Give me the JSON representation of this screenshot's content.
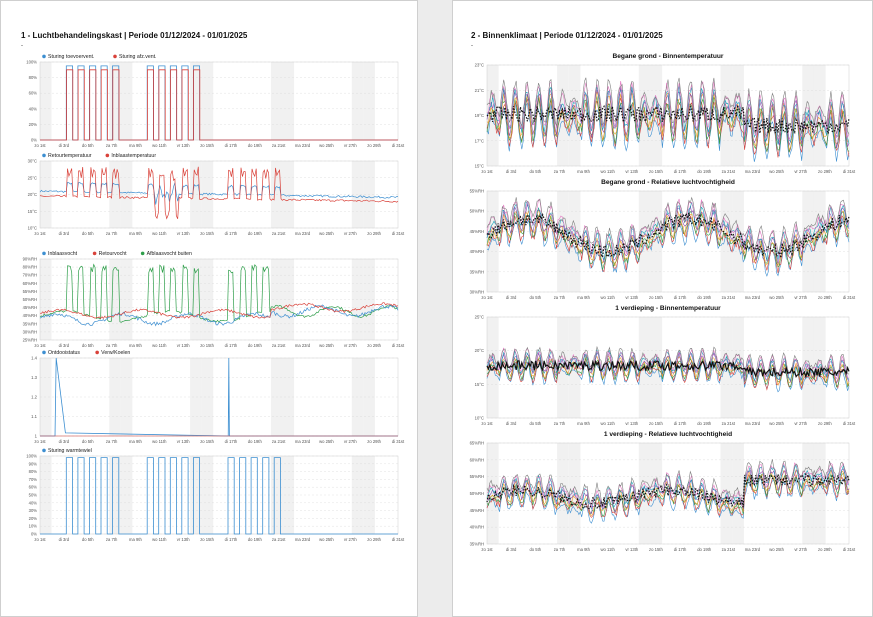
{
  "page1": {
    "title": "1 - Luchtbehandelingskast | Periode 01/12/2024 - 01/01/2025",
    "dash": "-"
  },
  "page2": {
    "title": "2 - Binnenklimaat | Periode 01/12/2024 - 01/01/2025",
    "dash": "-"
  },
  "colors": {
    "blue": "#3d8fd1",
    "red": "#d9423a",
    "green": "#2e9e4a",
    "black": "#111111",
    "orange": "#f0a030",
    "purple": "#8a4fb0",
    "grid": "#d9d9d9",
    "band": "#f1f1f1"
  },
  "x_ticks": [
    "zo 1st",
    "di 3rd",
    "do 5th",
    "za 7th",
    "ma 9th",
    "wo 11th",
    "vr 13th",
    "zo 15th",
    "di 17th",
    "do 19th",
    "za 21st",
    "ma 23rd",
    "wo 25th",
    "vr 27th",
    "zo 29th",
    "di 31st"
  ],
  "chart_data": [
    {
      "type": "line",
      "title": "",
      "legend": [
        "Sturing toevoervent.",
        "Sturing afz.vent."
      ],
      "yticks": [
        "100%",
        "80%",
        "60%",
        "40%",
        "20%",
        "0%"
      ],
      "ylim": [
        0,
        100
      ],
      "series_summary": [
        {
          "name": "Sturing toevoervent.",
          "on_value": 95,
          "off_value": 0
        },
        {
          "name": "Sturing afz.vent.",
          "on_value": 90,
          "off_value": 0
        }
      ],
      "on_days": [
        2,
        3,
        4,
        5,
        6,
        9,
        10,
        11,
        12,
        13
      ]
    },
    {
      "type": "line",
      "title": "",
      "legend": [
        "Retourtemperatuur",
        "Inblaastemperatuur"
      ],
      "yticks": [
        "30°C",
        "25°C",
        "20°C",
        "15°C",
        "10°C"
      ],
      "ylim": [
        10,
        30
      ]
    },
    {
      "type": "line",
      "title": "",
      "legend": [
        "Inblaasvocht",
        "Retourvocht",
        "Afblaasvocht buiten"
      ],
      "yticks": [
        "90%RH",
        "80%RH",
        "70%RH",
        "60%RH",
        "55%RH",
        "50%RH",
        "45%RH",
        "40%RH",
        "35%RH",
        "30%RH",
        "25%RH"
      ],
      "ylim": [
        25,
        90
      ]
    },
    {
      "type": "line",
      "title": "",
      "legend": [
        "Ontdooistatus",
        "Verw/Koelen"
      ],
      "yticks": [
        "1.4",
        "1.3",
        "1.2",
        "1.1",
        "1"
      ],
      "ylim": [
        1,
        1.5
      ]
    },
    {
      "type": "line",
      "title": "",
      "legend": [
        "Sturing warmtewiel"
      ],
      "yticks": [
        "100%",
        "90%",
        "80%",
        "70%",
        "60%",
        "50%",
        "40%",
        "30%",
        "20%",
        "10%",
        "0%"
      ],
      "ylim": [
        0,
        100
      ],
      "on_days": [
        2,
        3,
        4,
        5,
        6,
        9,
        10,
        11,
        12,
        13,
        16,
        17,
        18,
        19,
        20
      ]
    },
    {
      "type": "line",
      "title": "Begane grond - Binnentemperatuur",
      "yticks": [
        "23°C",
        "21°C",
        "19°C",
        "17°C",
        "15°C"
      ],
      "ylim": [
        15,
        23
      ]
    },
    {
      "type": "line",
      "title": "Begane grond - Relatieve luchtvochtigheid",
      "yticks": [
        "55%RH",
        "50%RH",
        "45%RH",
        "40%RH",
        "35%RH",
        "30%RH"
      ],
      "ylim": [
        30,
        55
      ]
    },
    {
      "type": "line",
      "title": "1 verdieping - Binnentemperatuur",
      "yticks": [
        "25°C",
        "20°C",
        "15°C",
        "10°C"
      ],
      "ylim": [
        10,
        25
      ]
    },
    {
      "type": "line",
      "title": "1 verdieping - Relatieve luchtvochtigheid",
      "yticks": [
        "65%RH",
        "60%RH",
        "55%RH",
        "50%RH",
        "45%RH",
        "40%RH",
        "35%RH"
      ],
      "ylim": [
        35,
        65
      ]
    }
  ]
}
